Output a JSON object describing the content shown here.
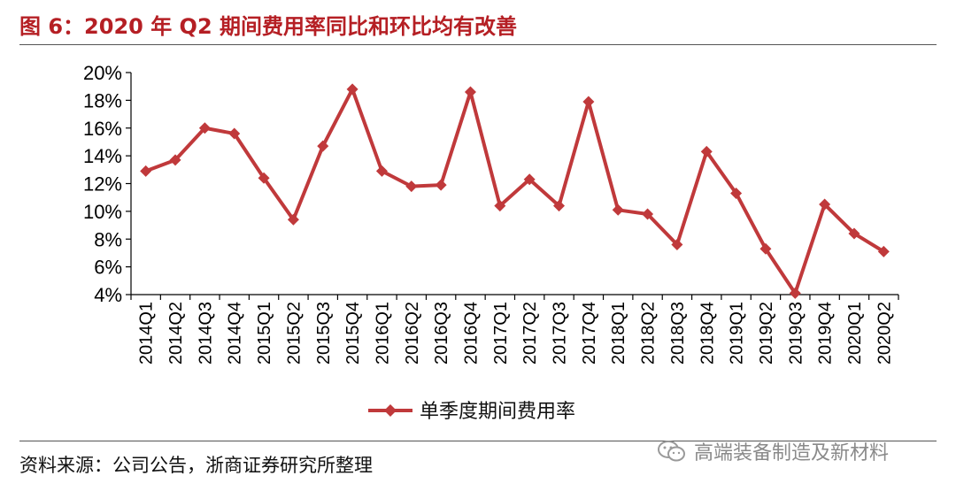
{
  "header": {
    "title": "图 6：2020 年 Q2 期间费用率同比和环比均有改善"
  },
  "footer": {
    "source": "资料来源：公司公告，浙商证券研究所整理",
    "watermark": "高端装备制造及新材料"
  },
  "colors": {
    "series": "#c0393b",
    "title": "#b51f24"
  },
  "chart_data": {
    "type": "line",
    "title": "图 6：2020 年 Q2 期间费用率同比和环比均有改善",
    "xlabel": "",
    "ylabel": "",
    "ylim": [
      4,
      20
    ],
    "yticks": [
      "4%",
      "6%",
      "8%",
      "10%",
      "12%",
      "14%",
      "16%",
      "18%",
      "20%"
    ],
    "categories": [
      "2014Q1",
      "2014Q2",
      "2014Q3",
      "2014Q4",
      "2015Q1",
      "2015Q2",
      "2015Q3",
      "2015Q4",
      "2016Q1",
      "2016Q2",
      "2016Q3",
      "2016Q4",
      "2017Q1",
      "2017Q2",
      "2017Q3",
      "2017Q4",
      "2018Q1",
      "2018Q2",
      "2018Q3",
      "2018Q4",
      "2019Q1",
      "2019Q2",
      "2019Q3",
      "2019Q4",
      "2020Q1",
      "2020Q2"
    ],
    "series": [
      {
        "name": "单季度期间费用率",
        "values": [
          12.9,
          13.7,
          16.0,
          15.6,
          12.4,
          9.4,
          14.7,
          18.8,
          12.9,
          11.8,
          11.9,
          18.6,
          10.4,
          12.3,
          10.4,
          17.9,
          10.1,
          9.8,
          7.6,
          14.3,
          11.3,
          7.3,
          4.1,
          10.5,
          8.4,
          7.1
        ]
      }
    ],
    "grid": false,
    "legend": "bottom-center"
  }
}
